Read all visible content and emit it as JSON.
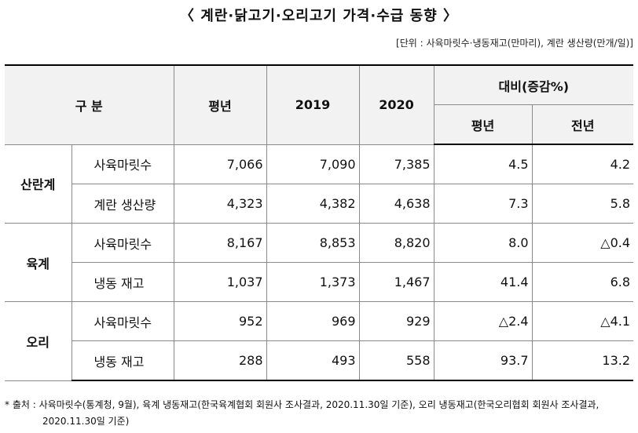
{
  "title": "〈 계란·닭고기·오리고기 가격·수급 동향 〉",
  "unit": "[단위 : 사육마릿수·냉동재고(만마리), 계란 생산량(만개/일)]",
  "header": {
    "category": "구  분",
    "avg": "평년",
    "y2019": "2019",
    "y2020": "2020",
    "compare": "대비(증감%)",
    "vs_avg": "평년",
    "vs_prev": "전년"
  },
  "groups": [
    {
      "name": "산란계",
      "rows": [
        {
          "item": "사육마릿수",
          "avg": "7,066",
          "y2019": "7,090",
          "y2020": "7,385",
          "vs_avg": "4.5",
          "vs_prev": "4.2"
        },
        {
          "item": "계란 생산량",
          "avg": "4,323",
          "y2019": "4,382",
          "y2020": "4,638",
          "vs_avg": "7.3",
          "vs_prev": "5.8"
        }
      ]
    },
    {
      "name": "육계",
      "rows": [
        {
          "item": "사육마릿수",
          "avg": "8,167",
          "y2019": "8,853",
          "y2020": "8,820",
          "vs_avg": "8.0",
          "vs_prev": "△0.4"
        },
        {
          "item": "냉동 재고",
          "avg": "1,037",
          "y2019": "1,373",
          "y2020": "1,467",
          "vs_avg": "41.4",
          "vs_prev": "6.8"
        }
      ]
    },
    {
      "name": "오리",
      "rows": [
        {
          "item": "사육마릿수",
          "avg": "952",
          "y2019": "969",
          "y2020": "929",
          "vs_avg": "△2.4",
          "vs_prev": "△4.1"
        },
        {
          "item": "냉동 재고",
          "avg": "288",
          "y2019": "493",
          "y2020": "558",
          "vs_avg": "93.7",
          "vs_prev": "13.2"
        }
      ]
    }
  ],
  "footnote": {
    "line1": "* 출처 : 사육마릿수(통계청, 9월), 육계 냉동재고(한국육계협회 회원사 조사결과, 2020.11.30일 기준), 오리 냉동재고(한국오리협회 회원사 조사결과,",
    "line2": "2020.11.30일 기준)"
  }
}
